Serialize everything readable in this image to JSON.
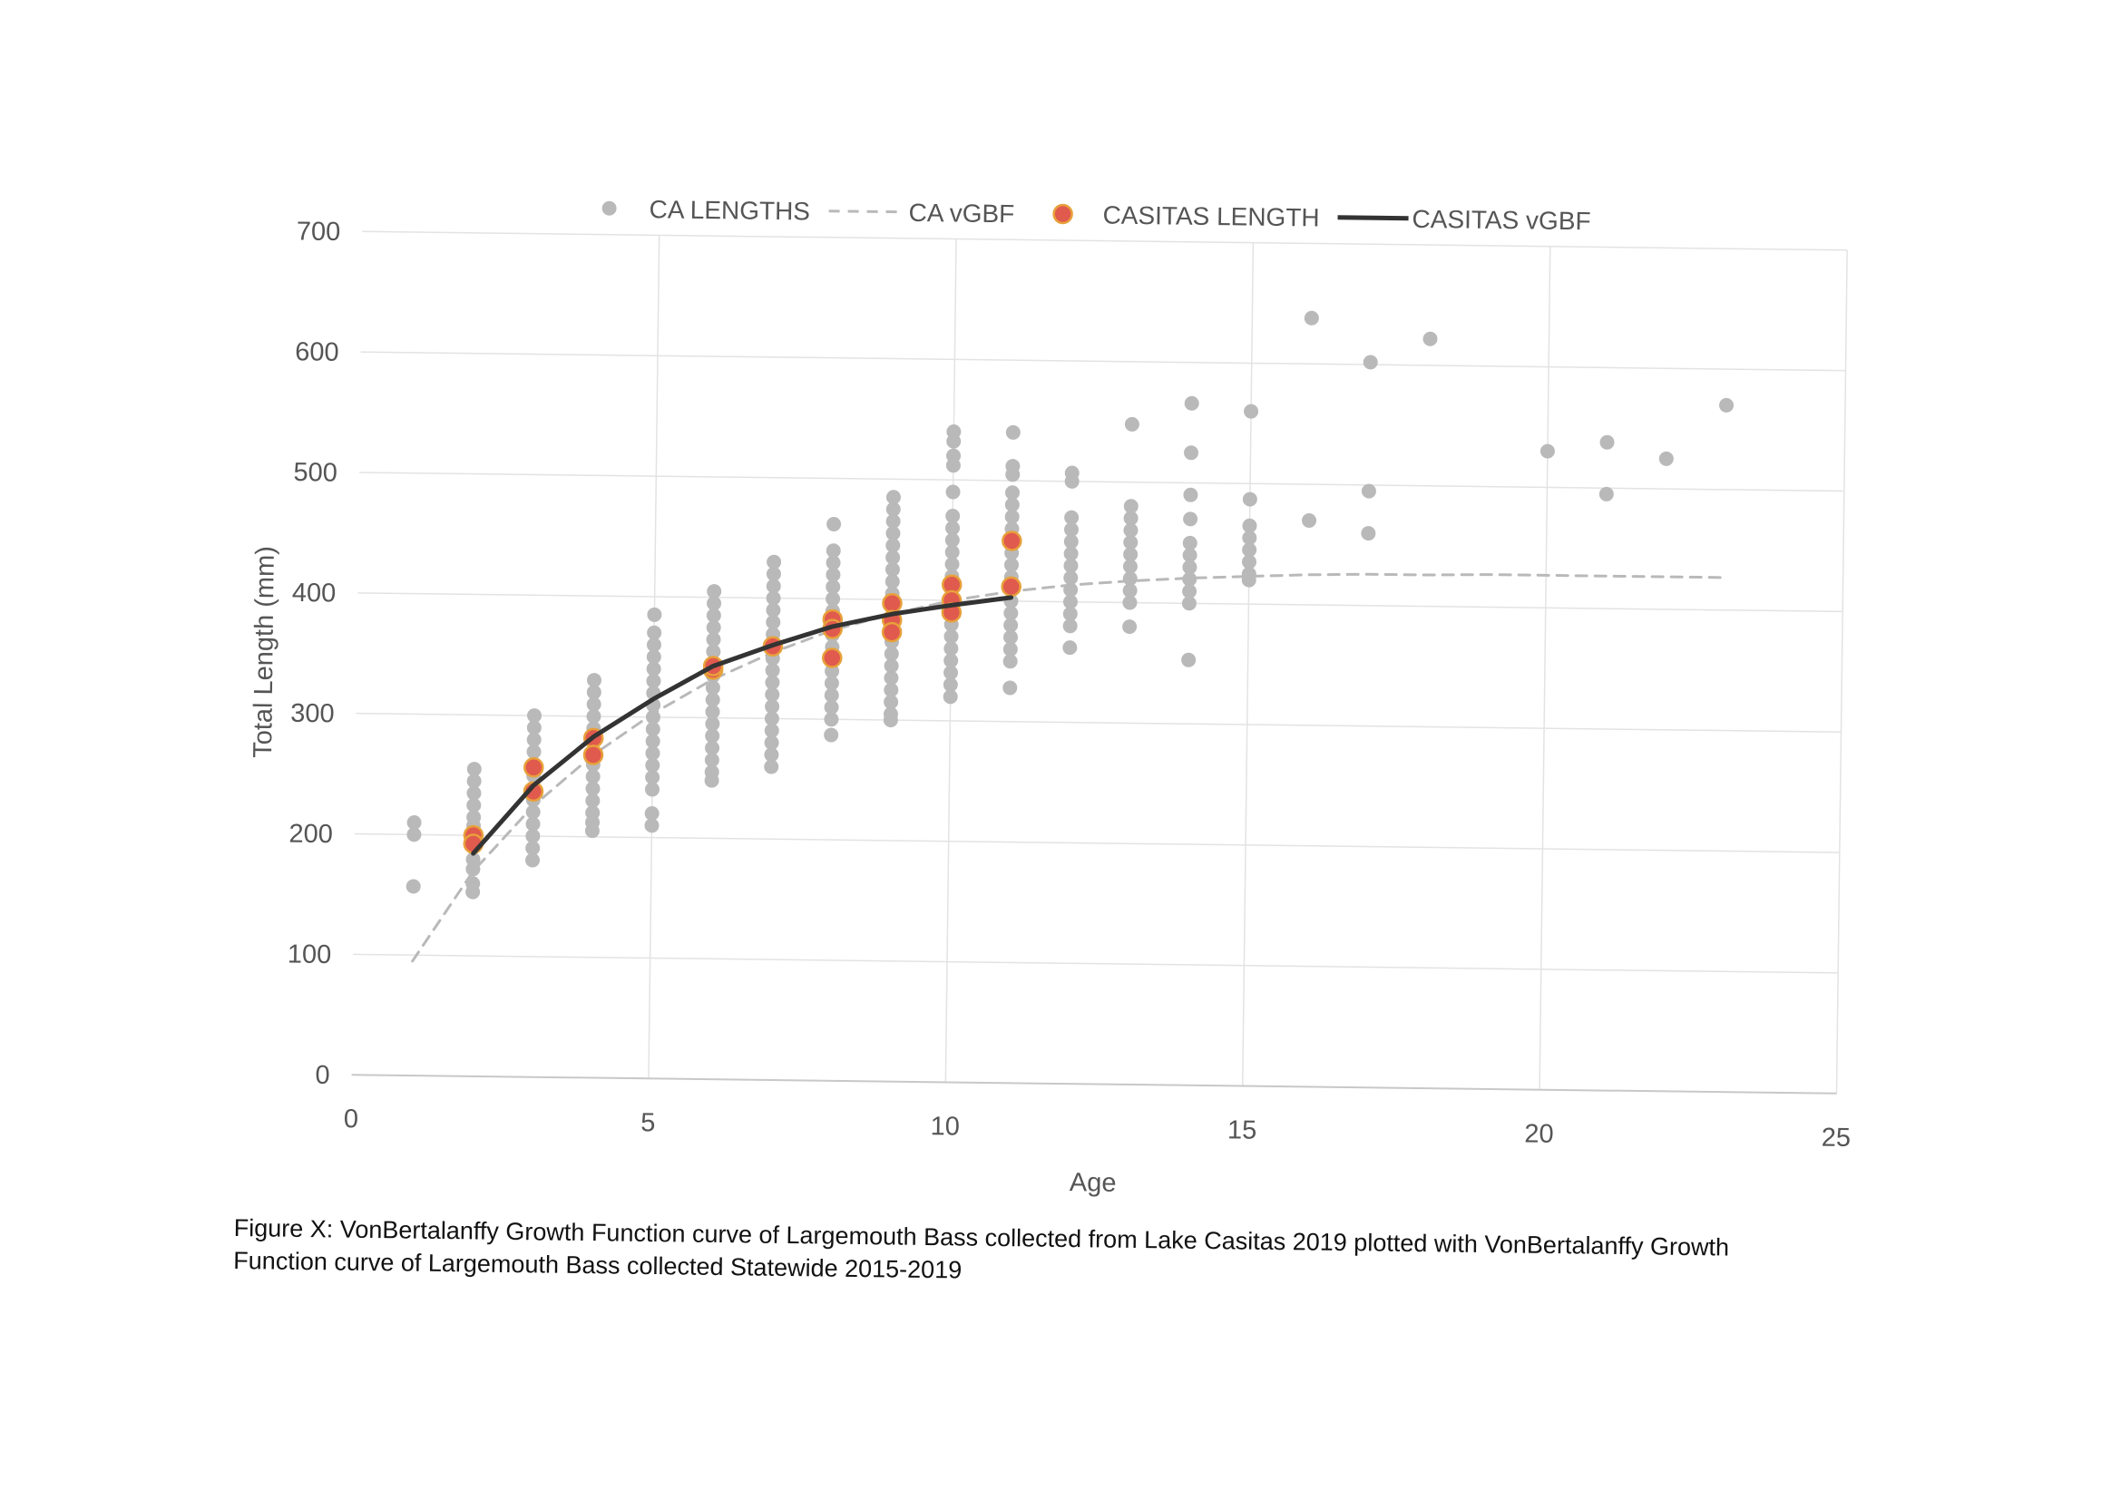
{
  "chart_data": {
    "type": "scatter",
    "xlabel": "Age",
    "ylabel": "Total Length (mm)",
    "xlim": [
      0,
      25
    ],
    "ylim": [
      0,
      700
    ],
    "xticks": [
      0,
      5,
      10,
      15,
      20,
      25
    ],
    "yticks": [
      0,
      100,
      200,
      300,
      400,
      500,
      600,
      700
    ],
    "grid": true,
    "legend_position": "top",
    "series": [
      {
        "name": "CA LENGTHS",
        "kind": "points",
        "color": "#b9b9b9",
        "points": [
          [
            1,
            210
          ],
          [
            1,
            200
          ],
          [
            1,
            157
          ],
          [
            2,
            255
          ],
          [
            2,
            245
          ],
          [
            2,
            235
          ],
          [
            2,
            225
          ],
          [
            2,
            215
          ],
          [
            2,
            208
          ],
          [
            2,
            200
          ],
          [
            2,
            190
          ],
          [
            2,
            180
          ],
          [
            2,
            172
          ],
          [
            2,
            160
          ],
          [
            2,
            153
          ],
          [
            3,
            300
          ],
          [
            3,
            290
          ],
          [
            3,
            280
          ],
          [
            3,
            270
          ],
          [
            3,
            260
          ],
          [
            3,
            250
          ],
          [
            3,
            240
          ],
          [
            3,
            230
          ],
          [
            3,
            220
          ],
          [
            3,
            210
          ],
          [
            3,
            200
          ],
          [
            3,
            190
          ],
          [
            3,
            180
          ],
          [
            4,
            330
          ],
          [
            4,
            320
          ],
          [
            4,
            310
          ],
          [
            4,
            300
          ],
          [
            4,
            290
          ],
          [
            4,
            280
          ],
          [
            4,
            270
          ],
          [
            4,
            260
          ],
          [
            4,
            250
          ],
          [
            4,
            240
          ],
          [
            4,
            230
          ],
          [
            4,
            220
          ],
          [
            4,
            212
          ],
          [
            4,
            205
          ],
          [
            5,
            385
          ],
          [
            5,
            370
          ],
          [
            5,
            360
          ],
          [
            5,
            350
          ],
          [
            5,
            340
          ],
          [
            5,
            330
          ],
          [
            5,
            320
          ],
          [
            5,
            310
          ],
          [
            5,
            300
          ],
          [
            5,
            290
          ],
          [
            5,
            280
          ],
          [
            5,
            270
          ],
          [
            5,
            260
          ],
          [
            5,
            250
          ],
          [
            5,
            240
          ],
          [
            5,
            220
          ],
          [
            5,
            210
          ],
          [
            6,
            405
          ],
          [
            6,
            395
          ],
          [
            6,
            385
          ],
          [
            6,
            375
          ],
          [
            6,
            365
          ],
          [
            6,
            355
          ],
          [
            6,
            345
          ],
          [
            6,
            335
          ],
          [
            6,
            325
          ],
          [
            6,
            315
          ],
          [
            6,
            305
          ],
          [
            6,
            295
          ],
          [
            6,
            285
          ],
          [
            6,
            275
          ],
          [
            6,
            265
          ],
          [
            6,
            255
          ],
          [
            6,
            248
          ],
          [
            7,
            430
          ],
          [
            7,
            420
          ],
          [
            7,
            410
          ],
          [
            7,
            400
          ],
          [
            7,
            390
          ],
          [
            7,
            380
          ],
          [
            7,
            370
          ],
          [
            7,
            360
          ],
          [
            7,
            350
          ],
          [
            7,
            340
          ],
          [
            7,
            330
          ],
          [
            7,
            320
          ],
          [
            7,
            310
          ],
          [
            7,
            300
          ],
          [
            7,
            290
          ],
          [
            7,
            280
          ],
          [
            7,
            270
          ],
          [
            7,
            260
          ],
          [
            8,
            462
          ],
          [
            8,
            440
          ],
          [
            8,
            430
          ],
          [
            8,
            420
          ],
          [
            8,
            410
          ],
          [
            8,
            400
          ],
          [
            8,
            390
          ],
          [
            8,
            380
          ],
          [
            8,
            370
          ],
          [
            8,
            360
          ],
          [
            8,
            350
          ],
          [
            8,
            340
          ],
          [
            8,
            330
          ],
          [
            8,
            320
          ],
          [
            8,
            310
          ],
          [
            8,
            300
          ],
          [
            8,
            287
          ],
          [
            9,
            485
          ],
          [
            9,
            475
          ],
          [
            9,
            465
          ],
          [
            9,
            455
          ],
          [
            9,
            445
          ],
          [
            9,
            435
          ],
          [
            9,
            425
          ],
          [
            9,
            415
          ],
          [
            9,
            405
          ],
          [
            9,
            395
          ],
          [
            9,
            385
          ],
          [
            9,
            375
          ],
          [
            9,
            365
          ],
          [
            9,
            355
          ],
          [
            9,
            345
          ],
          [
            9,
            335
          ],
          [
            9,
            325
          ],
          [
            9,
            315
          ],
          [
            9,
            305
          ],
          [
            9,
            300
          ],
          [
            10,
            540
          ],
          [
            10,
            532
          ],
          [
            10,
            520
          ],
          [
            10,
            512
          ],
          [
            10,
            490
          ],
          [
            10,
            470
          ],
          [
            10,
            460
          ],
          [
            10,
            450
          ],
          [
            10,
            440
          ],
          [
            10,
            430
          ],
          [
            10,
            420
          ],
          [
            10,
            410
          ],
          [
            10,
            400
          ],
          [
            10,
            390
          ],
          [
            10,
            380
          ],
          [
            10,
            370
          ],
          [
            10,
            360
          ],
          [
            10,
            350
          ],
          [
            10,
            340
          ],
          [
            10,
            330
          ],
          [
            10,
            320
          ],
          [
            11,
            540
          ],
          [
            11,
            512
          ],
          [
            11,
            505
          ],
          [
            11,
            490
          ],
          [
            11,
            480
          ],
          [
            11,
            470
          ],
          [
            11,
            460
          ],
          [
            11,
            450
          ],
          [
            11,
            440
          ],
          [
            11,
            430
          ],
          [
            11,
            420
          ],
          [
            11,
            410
          ],
          [
            11,
            400
          ],
          [
            11,
            390
          ],
          [
            11,
            380
          ],
          [
            11,
            370
          ],
          [
            11,
            360
          ],
          [
            11,
            350
          ],
          [
            11,
            328
          ],
          [
            12,
            507
          ],
          [
            12,
            500
          ],
          [
            12,
            470
          ],
          [
            12,
            460
          ],
          [
            12,
            450
          ],
          [
            12,
            440
          ],
          [
            12,
            430
          ],
          [
            12,
            420
          ],
          [
            12,
            410
          ],
          [
            12,
            400
          ],
          [
            12,
            390
          ],
          [
            12,
            380
          ],
          [
            12,
            362
          ],
          [
            13,
            548
          ],
          [
            13,
            480
          ],
          [
            13,
            470
          ],
          [
            13,
            460
          ],
          [
            13,
            450
          ],
          [
            13,
            440
          ],
          [
            13,
            430
          ],
          [
            13,
            420
          ],
          [
            13,
            410
          ],
          [
            13,
            400
          ],
          [
            13,
            380
          ],
          [
            14,
            566
          ],
          [
            14,
            525
          ],
          [
            14,
            490
          ],
          [
            14,
            470
          ],
          [
            14,
            450
          ],
          [
            14,
            440
          ],
          [
            14,
            430
          ],
          [
            14,
            420
          ],
          [
            14,
            410
          ],
          [
            14,
            400
          ],
          [
            14,
            353
          ],
          [
            15,
            560
          ],
          [
            15,
            487
          ],
          [
            15,
            465
          ],
          [
            15,
            455
          ],
          [
            15,
            445
          ],
          [
            15,
            435
          ],
          [
            15,
            425
          ],
          [
            15,
            420
          ],
          [
            16,
            638
          ],
          [
            16,
            470
          ],
          [
            17,
            602
          ],
          [
            17,
            495
          ],
          [
            17,
            460
          ],
          [
            18,
            622
          ],
          [
            20,
            530
          ],
          [
            21,
            538
          ],
          [
            21,
            495
          ],
          [
            22,
            525
          ],
          [
            23,
            570
          ]
        ]
      },
      {
        "name": "CA vGBF",
        "kind": "dashed-line",
        "color": "#b9b9b9",
        "points": [
          [
            1,
            95
          ],
          [
            2,
            170
          ],
          [
            3,
            225
          ],
          [
            4,
            268
          ],
          [
            5,
            303
          ],
          [
            6,
            332
          ],
          [
            7,
            355
          ],
          [
            8,
            374
          ],
          [
            9,
            388
          ],
          [
            10,
            400
          ],
          [
            11,
            408
          ],
          [
            12,
            414
          ],
          [
            13,
            418
          ],
          [
            14,
            421
          ],
          [
            15,
            423
          ],
          [
            16,
            425
          ],
          [
            17,
            426
          ],
          [
            18,
            426
          ],
          [
            19,
            427
          ],
          [
            20,
            427
          ],
          [
            21,
            427
          ],
          [
            22,
            427
          ],
          [
            23,
            427
          ]
        ]
      },
      {
        "name": "CASITAS LENGTH",
        "kind": "points",
        "color": "#e05a4e",
        "stroke": "#e8a13a",
        "points": [
          [
            2,
            200
          ],
          [
            2,
            193
          ],
          [
            3,
            257
          ],
          [
            3,
            237
          ],
          [
            4,
            282
          ],
          [
            4,
            268
          ],
          [
            6,
            340
          ],
          [
            6,
            343
          ],
          [
            7,
            360
          ],
          [
            8,
            383
          ],
          [
            8,
            375
          ],
          [
            8,
            351
          ],
          [
            9,
            397
          ],
          [
            9,
            383
          ],
          [
            9,
            373
          ],
          [
            10,
            413
          ],
          [
            10,
            400
          ],
          [
            10,
            390
          ],
          [
            11,
            450
          ],
          [
            11,
            412
          ]
        ]
      },
      {
        "name": "CASITAS vGBF",
        "kind": "line",
        "color": "#333333",
        "points": [
          [
            2,
            185
          ],
          [
            3,
            242
          ],
          [
            4,
            283
          ],
          [
            5,
            315
          ],
          [
            6,
            343
          ],
          [
            7,
            361
          ],
          [
            8,
            377
          ],
          [
            9,
            388
          ],
          [
            10,
            396
          ],
          [
            11,
            403
          ]
        ]
      }
    ]
  },
  "caption": {
    "line1": "Figure X: VonBertalanffy Growth Function curve of Largemouth Bass collected from Lake Casitas 2019 plotted with VonBertalanffy Growth",
    "line2": "Function curve of Largemouth Bass collected Statewide 2015-2019"
  }
}
